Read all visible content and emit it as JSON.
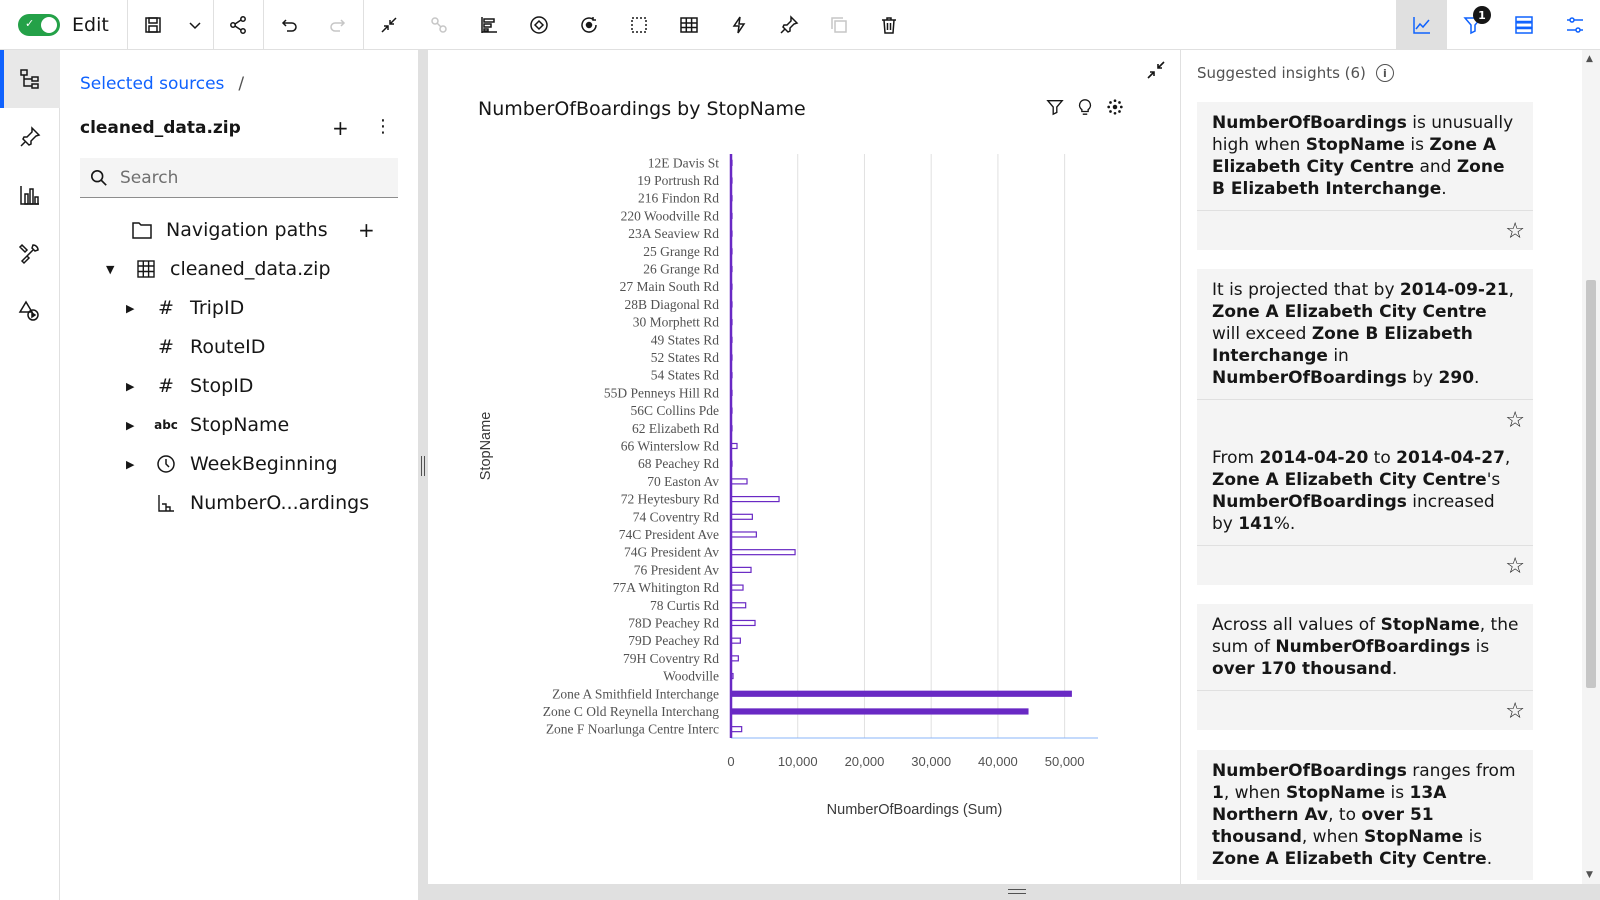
{
  "toolbar": {
    "edit_label": "Edit",
    "filter_badge": "1"
  },
  "sources": {
    "breadcrumb_link": "Selected sources",
    "breadcrumb_sep": "/",
    "title": "cleaned_data.zip",
    "search_placeholder": "Search",
    "tree": [
      {
        "label": "Navigation paths",
        "icon": "folder-icon"
      },
      {
        "label": "cleaned_data.zip",
        "icon": "table-icon"
      },
      {
        "label": "TripID",
        "icon": "hash-icon"
      },
      {
        "label": "RouteID",
        "icon": "hash-icon"
      },
      {
        "label": "StopID",
        "icon": "hash-icon"
      },
      {
        "label": "StopName",
        "icon": "abc-icon",
        "icon_text": "abc"
      },
      {
        "label": "WeekBeginning",
        "icon": "clock-icon"
      },
      {
        "label": "NumberO...ardings",
        "icon": "measure-icon"
      }
    ]
  },
  "chart_data": {
    "type": "bar",
    "orientation": "horizontal",
    "title": "NumberOfBoardings by StopName",
    "xlabel": "NumberOfBoardings (Sum)",
    "ylabel": "StopName",
    "xlim": [
      0,
      55000
    ],
    "xticks": [
      "0",
      "10,000",
      "20,000",
      "30,000",
      "40,000",
      "50,000"
    ],
    "grid": true,
    "color": "#6929c4",
    "categories": [
      "12E Davis St",
      "19 Portrush Rd",
      "216 Findon Rd",
      "220 Woodville Rd",
      "23A Seaview Rd",
      "25 Grange Rd",
      "26 Grange Rd",
      "27 Main South Rd",
      "28B Diagonal Rd",
      "30 Morphett Rd",
      "49 States Rd",
      "52 States Rd",
      "54 States Rd",
      "55D Penneys Hill Rd",
      "56C Collins Pde",
      "62 Elizabeth Rd",
      "66 Winterslow Rd",
      "68 Peachey Rd",
      "70 Easton Av",
      "72 Heytesbury Rd",
      "74 Coventry Rd",
      "74C President Ave",
      "74G President Av",
      "76 President Av",
      "77A Whitington Rd",
      "78 Curtis Rd",
      "78D Peachey Rd",
      "79D Peachey Rd",
      "79H Coventry Rd",
      "Woodville",
      "Zone A Smithfield Interchange",
      "Zone C Old Reynella Interchang",
      "Zone F Noarlunga Centre Interc"
    ],
    "values": [
      30,
      20,
      25,
      15,
      40,
      60,
      20,
      30,
      50,
      10,
      80,
      40,
      30,
      20,
      20,
      30,
      900,
      150,
      2400,
      7200,
      3200,
      3800,
      9600,
      3000,
      1800,
      2200,
      3600,
      1400,
      1100,
      300,
      51000,
      44500,
      1600
    ]
  },
  "insights": {
    "header": "Suggested insights (6)",
    "cards": [
      {
        "parts": [
          [
            "NumberOfBoardings",
            true
          ],
          [
            " is unusually high when ",
            false
          ],
          [
            "StopName",
            true
          ],
          [
            " is ",
            false
          ],
          [
            "Zone A Elizabeth City Centre",
            true
          ],
          [
            " and ",
            false
          ],
          [
            "Zone B Elizabeth Interchange",
            true
          ],
          [
            ".",
            false
          ]
        ]
      },
      {
        "parts": [
          [
            "It is projected that by ",
            false
          ],
          [
            "2014-09-21",
            true
          ],
          [
            ", ",
            false
          ],
          [
            "Zone A Elizabeth City Centre",
            true
          ],
          [
            " will exceed ",
            false
          ],
          [
            "Zone B Elizabeth Interchange",
            true
          ],
          [
            " in ",
            false
          ],
          [
            "NumberOfBoardings",
            true
          ],
          [
            " by ",
            false
          ],
          [
            "290",
            true
          ],
          [
            ".",
            false
          ]
        ]
      },
      {
        "parts": [
          [
            "From ",
            false
          ],
          [
            "2014-04-20",
            true
          ],
          [
            " to ",
            false
          ],
          [
            "2014-04-27",
            true
          ],
          [
            ", ",
            false
          ],
          [
            "Zone A Elizabeth City Centre",
            true
          ],
          [
            "'s ",
            false
          ],
          [
            "NumberOfBoardings",
            true
          ],
          [
            " increased by ",
            false
          ],
          [
            "141",
            true
          ],
          [
            "%.",
            false
          ]
        ]
      },
      {
        "parts": [
          [
            "Across all values of ",
            false
          ],
          [
            "StopName",
            true
          ],
          [
            ", the sum of ",
            false
          ],
          [
            "NumberOfBoardings",
            true
          ],
          [
            " is ",
            false
          ],
          [
            "over 170 thousand",
            true
          ],
          [
            ".",
            false
          ]
        ]
      },
      {
        "parts": [
          [
            "NumberOfBoardings",
            true
          ],
          [
            " ranges from ",
            false
          ],
          [
            "1",
            true
          ],
          [
            ", when ",
            false
          ],
          [
            "StopName",
            true
          ],
          [
            " is ",
            false
          ],
          [
            "13A Northern Av",
            true
          ],
          [
            ", to ",
            false
          ],
          [
            "over 51 thousand",
            true
          ],
          [
            ", when ",
            false
          ],
          [
            "StopName",
            true
          ],
          [
            " is ",
            false
          ],
          [
            "Zone A Elizabeth City Centre",
            true
          ],
          [
            ".",
            false
          ]
        ]
      }
    ]
  }
}
